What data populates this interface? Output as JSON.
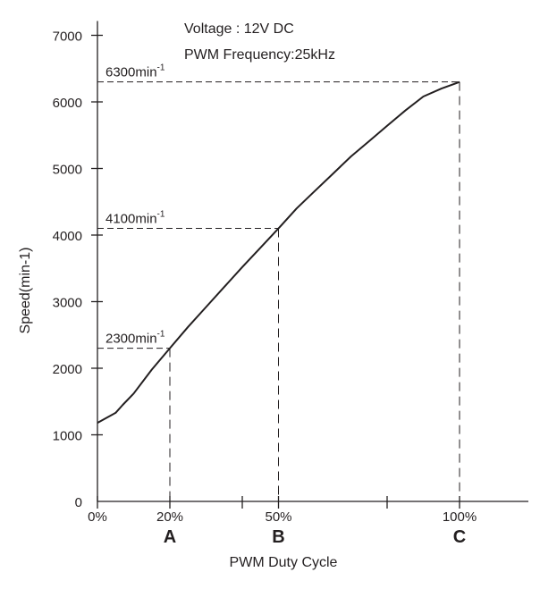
{
  "chart_data": {
    "type": "line",
    "conditions": [
      "Voltage : 12V DC",
      "PWM Frequency:25kHz"
    ],
    "xlabel": "PWM Duty Cycle",
    "ylabel": "Speed(min-1)",
    "xlim": [
      0,
      120
    ],
    "ylim": [
      0,
      7000
    ],
    "y_ticks": [
      0,
      1000,
      2000,
      3000,
      4000,
      5000,
      6000,
      7000
    ],
    "y_tick_labels": [
      "0",
      "1000",
      "2000",
      "3000",
      "4000",
      "5000",
      "6000",
      "7000"
    ],
    "x_tick_values": [
      0,
      20,
      40,
      50,
      80,
      100
    ],
    "x_tick_labels": [
      {
        "x": 0,
        "label": "0%"
      },
      {
        "x": 20,
        "label": "20%"
      },
      {
        "x": 50,
        "label": "50%"
      },
      {
        "x": 100,
        "label": "100%"
      }
    ],
    "series": [
      {
        "name": "Speed",
        "x": [
          0,
          2,
          5,
          7,
          10,
          15,
          20,
          25,
          30,
          35,
          40,
          45,
          50,
          55,
          60,
          65,
          70,
          75,
          80,
          85,
          90,
          95,
          100
        ],
        "y": [
          1180,
          1240,
          1330,
          1450,
          1620,
          1980,
          2300,
          2620,
          2920,
          3220,
          3520,
          3810,
          4100,
          4400,
          4660,
          4920,
          5180,
          5410,
          5640,
          5870,
          6080,
          6200,
          6300
        ]
      }
    ],
    "reference_points": [
      {
        "letter": "A",
        "x": 20,
        "y": 2300,
        "label_main": "2300min",
        "label_sup": "-1"
      },
      {
        "letter": "B",
        "x": 50,
        "y": 4100,
        "label_main": "4100min",
        "label_sup": "-1"
      },
      {
        "letter": "C",
        "x": 100,
        "y": 6300,
        "label_main": "6300min",
        "label_sup": "-1"
      }
    ]
  }
}
